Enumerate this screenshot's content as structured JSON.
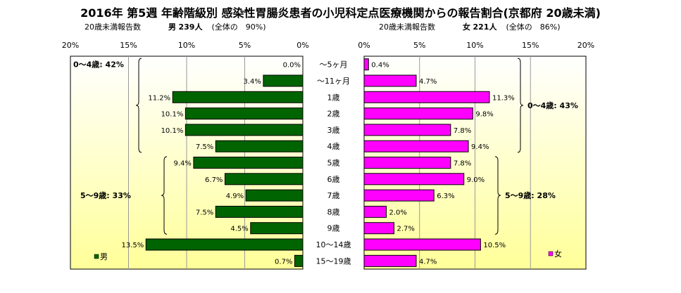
{
  "title": "2016年 第5週 年齢階級別 感染性胃腸炎患者の小児科定点医療機関からの報告割合(京都府 20歳未満)",
  "male_header": {
    "left": "20歳未満報告数",
    "sex": "男",
    "count": "239人",
    "share": "(全体の　90%)"
  },
  "female_header": {
    "left": "20歳未満報告数",
    "sex": "女",
    "count": "221人",
    "share": "(全体の　86%)"
  },
  "colors": {
    "male": "#006400",
    "female": "#ff00ff",
    "panel_top": "#ffffff",
    "panel_bottom": "#ffff99"
  },
  "chart_data": {
    "type": "bar",
    "orientation": "horizontal-population-pyramid",
    "categories": [
      "～5ヶ月",
      "～11ヶ月",
      "1歳",
      "2歳",
      "3歳",
      "4歳",
      "5歳",
      "6歳",
      "7歳",
      "8歳",
      "9歳",
      "10～14歳",
      "15～19歳"
    ],
    "series": [
      {
        "name": "男",
        "values": [
          0.0,
          3.4,
          11.2,
          10.1,
          10.1,
          7.5,
          9.4,
          6.7,
          4.9,
          7.5,
          4.5,
          13.5,
          0.7
        ],
        "labels": [
          "0.0%",
          "3.4%",
          "11.2%",
          "10.1%",
          "10.1%",
          "7.5%",
          "9.4%",
          "6.7%",
          "4.9%",
          "7.5%",
          "4.5%",
          "13.5%",
          "0.7%"
        ]
      },
      {
        "name": "女",
        "values": [
          0.4,
          4.7,
          11.3,
          9.8,
          7.8,
          9.4,
          7.8,
          9.0,
          6.3,
          2.0,
          2.7,
          10.5,
          4.7
        ],
        "labels": [
          "0.4%",
          "4.7%",
          "11.3%",
          "9.8%",
          "7.8%",
          "9.4%",
          "7.8%",
          "9.0%",
          "6.3%",
          "2.0%",
          "2.7%",
          "10.5%",
          "4.7%"
        ]
      }
    ],
    "x_range": [
      0,
      20
    ],
    "x_ticks_male": [
      "20%",
      "15%",
      "10%",
      "5%",
      "0%"
    ],
    "x_ticks_female": [
      "0%",
      "5%",
      "10%",
      "15%",
      "20%"
    ],
    "groups_male": [
      {
        "label": "0～4歳: 42%",
        "from": 0,
        "to": 5
      },
      {
        "label": "5～9歳: 33%",
        "from": 6,
        "to": 10
      }
    ],
    "groups_female": [
      {
        "label": "0～4歳: 43%",
        "from": 0,
        "to": 5
      },
      {
        "label": "5～9歳: 28%",
        "from": 6,
        "to": 10
      }
    ],
    "legend_male": "男",
    "legend_female": "女",
    "grid": true
  }
}
